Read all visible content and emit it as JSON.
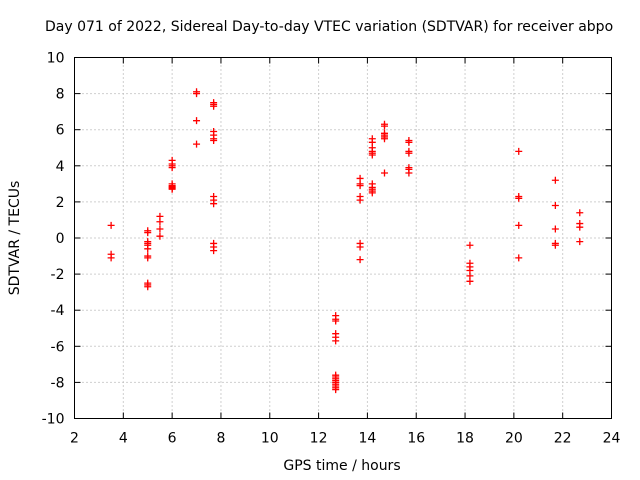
{
  "chart_data": {
    "type": "scatter",
    "title": "Day 071 of 2022, Sidereal Day-to-day VTEC variation (SDTVAR) for receiver abpo",
    "xlabel": "GPS time / hours",
    "ylabel": "SDTVAR / TECUs",
    "xlim": [
      2,
      24
    ],
    "ylim": [
      -10,
      10
    ],
    "xticks": [
      2,
      4,
      6,
      8,
      10,
      12,
      14,
      16,
      18,
      20,
      22,
      24
    ],
    "yticks": [
      -10,
      -8,
      -6,
      -4,
      -2,
      0,
      2,
      4,
      6,
      8,
      10
    ],
    "grid": true,
    "marker": "+",
    "color": "#ff0000",
    "series": [
      {
        "name": "SDTVAR",
        "x": [
          3.5,
          3.5,
          3.5,
          5.0,
          5.0,
          5.0,
          5.0,
          5.0,
          5.0,
          5.0,
          5.0,
          5.0,
          5.0,
          5.0,
          5.5,
          5.5,
          5.5,
          5.5,
          6.0,
          6.0,
          6.0,
          6.0,
          6.0,
          6.0,
          6.0,
          6.0,
          6.0,
          6.0,
          7.0,
          7.0,
          7.0,
          7.0,
          7.7,
          7.7,
          7.7,
          7.7,
          7.7,
          7.7,
          7.7,
          7.7,
          7.7,
          7.7,
          7.7,
          7.7,
          7.7,
          12.7,
          12.7,
          12.7,
          12.7,
          12.7,
          12.7,
          12.7,
          12.7,
          12.7,
          12.7,
          12.7,
          12.7,
          12.7,
          12.7,
          12.7,
          13.7,
          13.7,
          13.7,
          13.7,
          13.7,
          13.7,
          13.7,
          13.7,
          14.2,
          14.2,
          14.2,
          14.2,
          14.2,
          14.2,
          14.2,
          14.2,
          14.2,
          14.2,
          14.2,
          14.7,
          14.7,
          14.7,
          14.7,
          14.7,
          14.7,
          14.7,
          15.7,
          15.7,
          15.7,
          15.7,
          15.7,
          15.7,
          15.7,
          18.2,
          18.2,
          18.2,
          18.2,
          18.2,
          18.2,
          20.2,
          20.2,
          20.2,
          20.2,
          20.2,
          21.7,
          21.7,
          21.7,
          21.7,
          21.7,
          22.7,
          22.7,
          22.7,
          22.7
        ],
        "y": [
          0.7,
          -0.9,
          -1.1,
          0.4,
          0.3,
          -0.2,
          -0.3,
          -0.4,
          -0.6,
          -1.0,
          -1.1,
          -2.5,
          -2.6,
          -2.7,
          1.2,
          0.9,
          0.5,
          0.1,
          4.3,
          4.1,
          4.0,
          3.9,
          3.0,
          2.9,
          2.85,
          2.8,
          2.75,
          2.7,
          8.1,
          8.0,
          6.5,
          5.2,
          7.5,
          7.4,
          7.3,
          5.9,
          5.7,
          5.5,
          5.4,
          2.3,
          2.1,
          1.9,
          -0.3,
          -0.5,
          -0.7,
          -4.3,
          -4.5,
          -4.6,
          -5.3,
          -5.5,
          -5.7,
          -7.6,
          -7.7,
          -7.8,
          -7.9,
          -8.0,
          -8.1,
          -8.2,
          -8.3,
          -8.4,
          3.3,
          3.0,
          2.9,
          2.3,
          2.1,
          -0.3,
          -0.5,
          -1.2,
          5.5,
          5.3,
          5.0,
          4.8,
          4.7,
          4.6,
          3.0,
          2.8,
          2.7,
          2.6,
          2.5,
          6.3,
          6.2,
          5.8,
          5.7,
          5.6,
          5.5,
          3.6,
          5.4,
          5.3,
          4.8,
          4.7,
          3.9,
          3.8,
          3.6,
          -0.4,
          -1.4,
          -1.6,
          -1.8,
          -2.1,
          -2.4,
          4.8,
          2.3,
          2.2,
          0.7,
          -1.1,
          3.2,
          1.8,
          0.5,
          -0.3,
          -0.4,
          1.4,
          0.8,
          0.6,
          -0.2
        ]
      }
    ]
  }
}
